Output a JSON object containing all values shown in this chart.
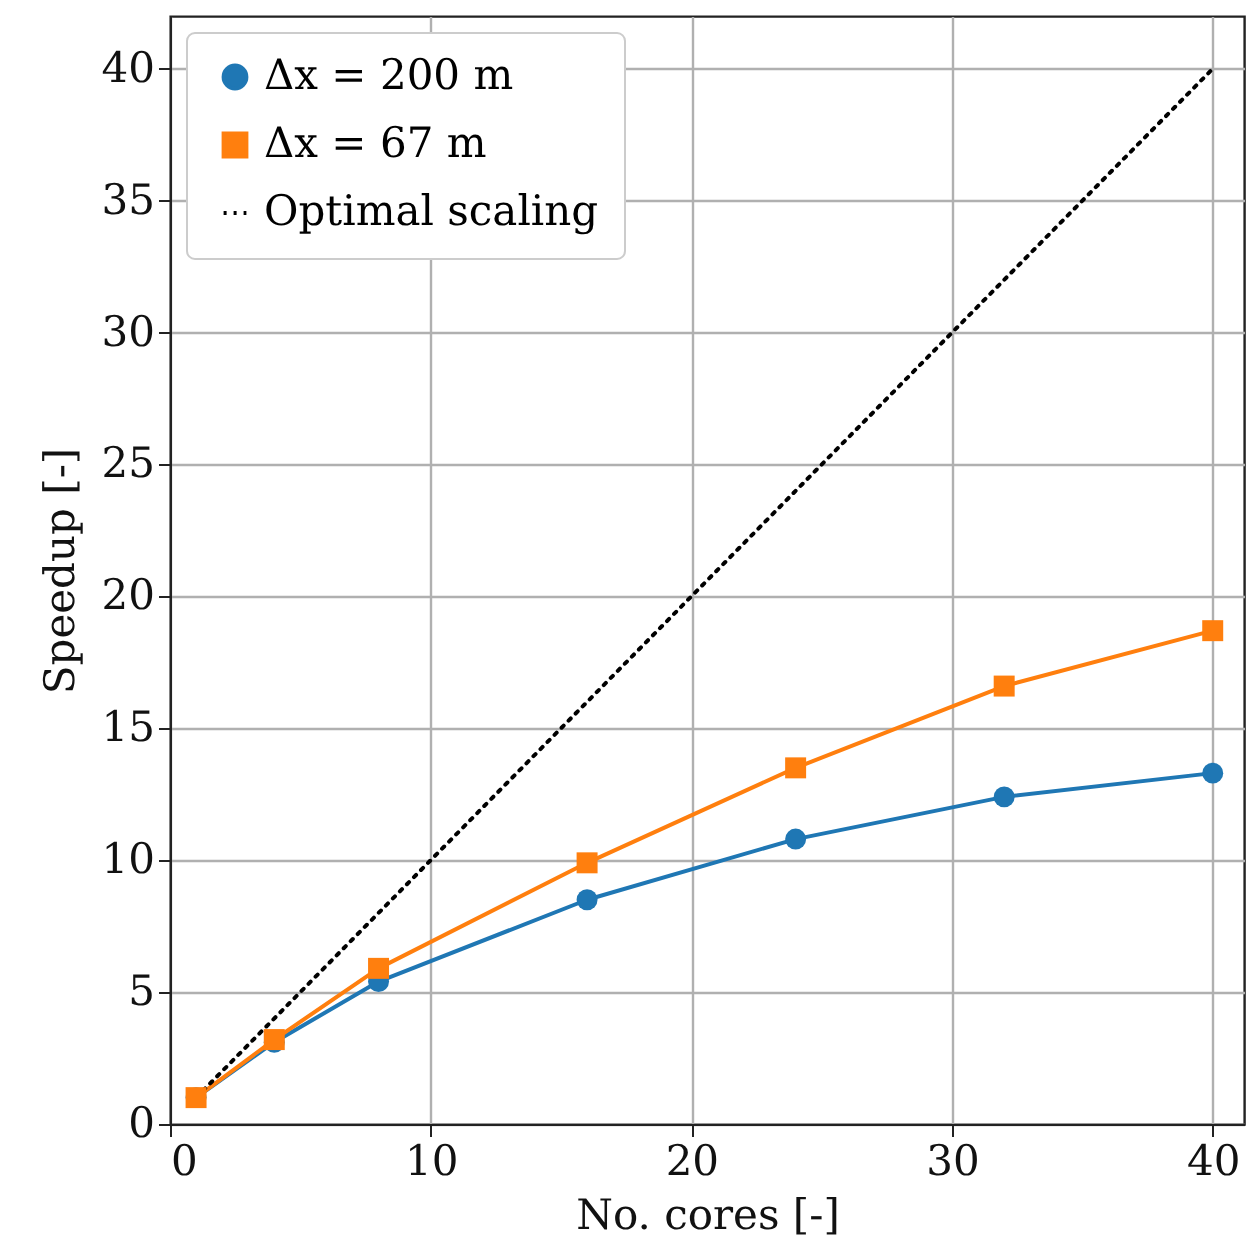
{
  "chart_data": {
    "type": "line",
    "xlabel": "No. cores [-]",
    "ylabel": "Speedup [-]",
    "xlim": [
      0,
      41.2
    ],
    "ylim": [
      0,
      42
    ],
    "xticks": [
      0,
      10,
      20,
      30,
      40
    ],
    "yticks": [
      0,
      5,
      10,
      15,
      20,
      25,
      30,
      35,
      40
    ],
    "grid": true,
    "legend": "top left",
    "series": [
      {
        "name": "Δx = 200 m",
        "color": "#1f77b4",
        "marker": "circle",
        "line_style": "solid",
        "x": [
          1,
          4,
          8,
          16,
          24,
          32,
          40
        ],
        "values": [
          1,
          3.1,
          5.4,
          8.5,
          10.8,
          12.4,
          13.3
        ]
      },
      {
        "name": "Δx = 67 m",
        "color": "#ff7f0e",
        "marker": "square",
        "line_style": "solid",
        "x": [
          1,
          4,
          8,
          16,
          24,
          32,
          40
        ],
        "values": [
          1,
          3.2,
          5.9,
          9.9,
          13.5,
          16.6,
          18.7
        ]
      },
      {
        "name": "Optimal scaling",
        "color": "#000000",
        "marker": "none",
        "line_style": "dotted",
        "x": [
          1,
          40
        ],
        "values": [
          1,
          40
        ]
      }
    ]
  }
}
